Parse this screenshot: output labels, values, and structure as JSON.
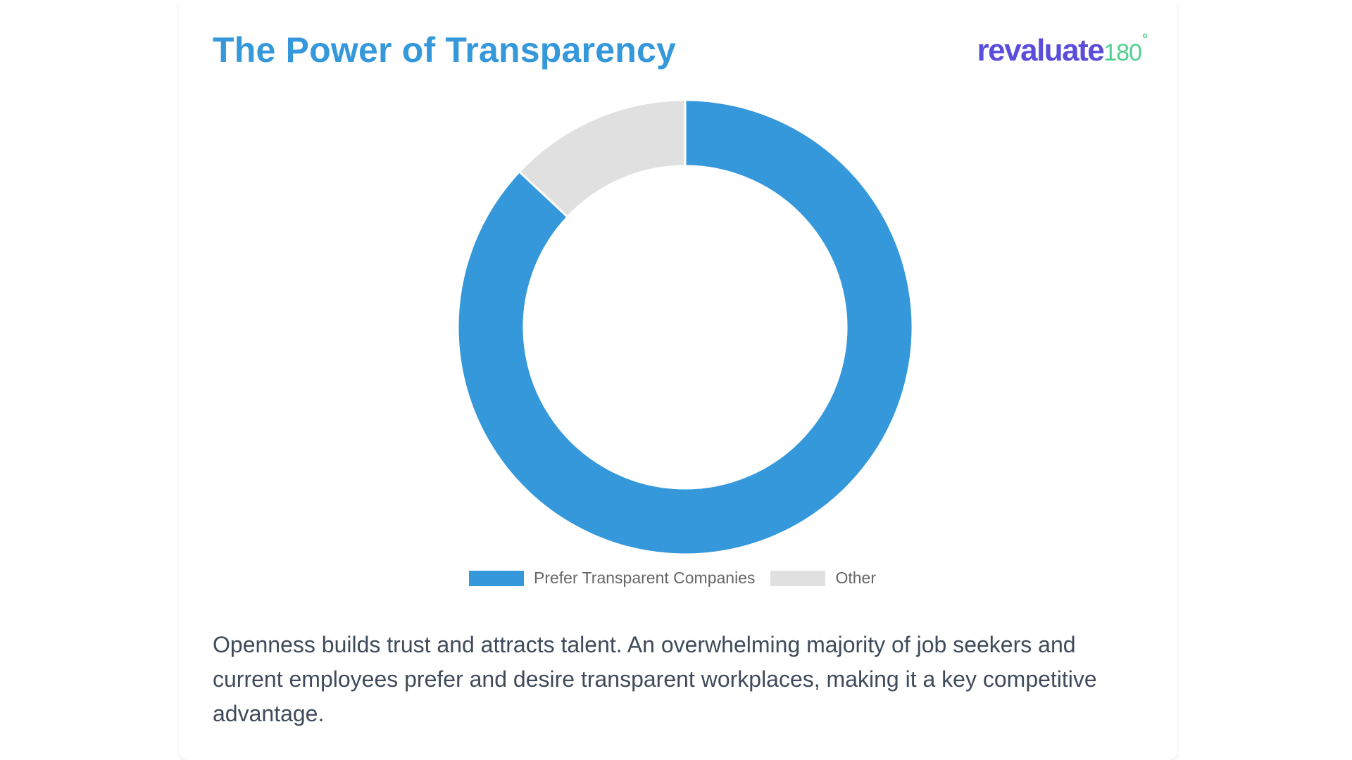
{
  "slide": {
    "title": "The Power of Transparency",
    "description": "Openness builds trust and attracts talent. An overwhelming majority of job seekers and current employees prefer and desire transparent workplaces, making it a key competitive advantage."
  },
  "logo": {
    "word": "revaluate",
    "number": "180",
    "mark": "°",
    "word_color": "#5b4ddb",
    "number_color": "#4fd08d"
  },
  "chart_data": {
    "type": "pie",
    "variant": "doughnut",
    "title": "",
    "legend_position": "bottom",
    "series": [
      {
        "categories": [
          "Prefer Transparent Companies",
          "Other"
        ],
        "values": [
          87,
          13
        ],
        "colors": [
          "#3498db",
          "#e0e0e0"
        ]
      }
    ]
  }
}
